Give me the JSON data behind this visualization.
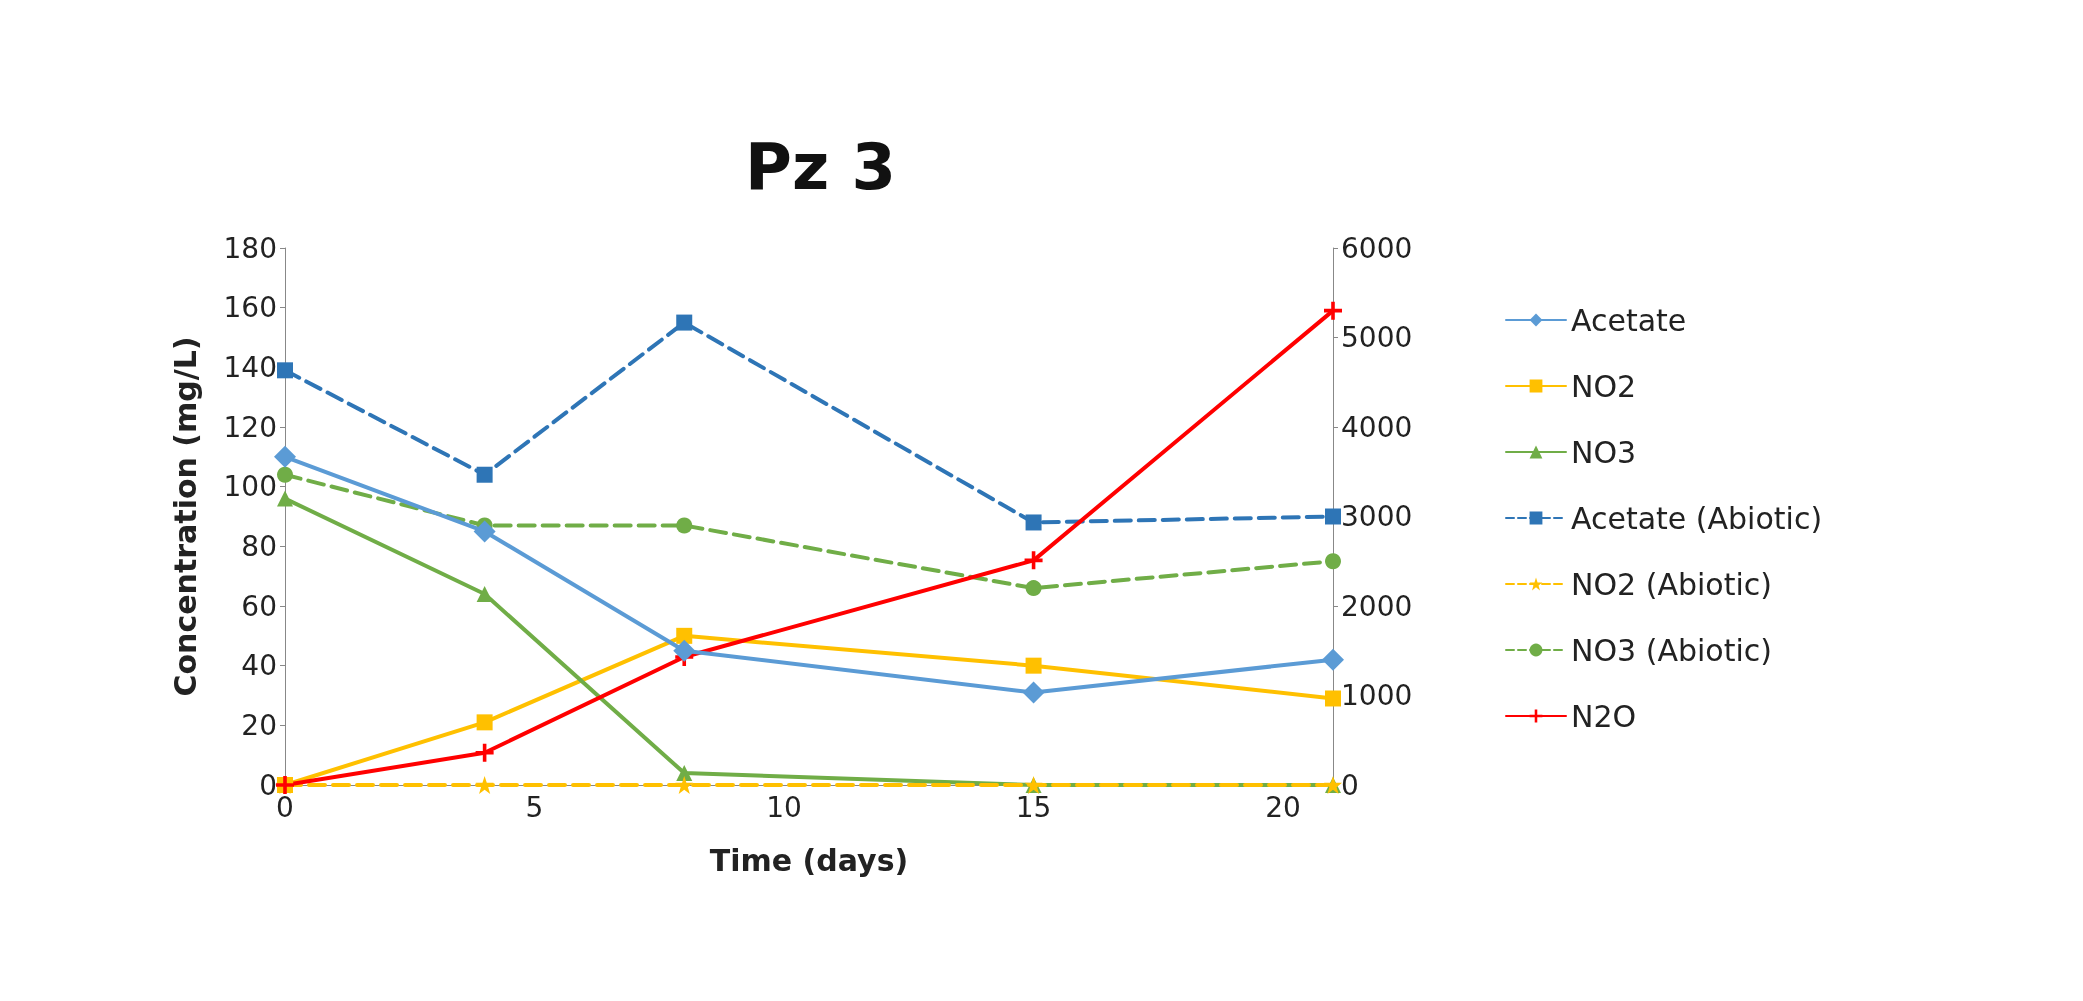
{
  "chart_data": {
    "type": "line",
    "title": "Pz 3",
    "xlabel": "Time (days)",
    "ylabel": "Concentration (mg/L)",
    "x": [
      0,
      4,
      8,
      15,
      21
    ],
    "xlim": [
      0,
      21
    ],
    "xticks": [
      0,
      5,
      10,
      15,
      20
    ],
    "ylim": [
      0,
      180
    ],
    "yticks": [
      0,
      20,
      40,
      60,
      80,
      100,
      120,
      140,
      160,
      180
    ],
    "y2lim": [
      0,
      6000
    ],
    "y2ticks": [
      0,
      1000,
      2000,
      3000,
      4000,
      5000,
      6000
    ],
    "grid": false,
    "legend": "right",
    "series": [
      {
        "name": "Acetate",
        "color": "#5b9bd5",
        "marker": "diamond",
        "line_style": "solid",
        "values": [
          110,
          85,
          45,
          31,
          42
        ]
      },
      {
        "name": "NO2",
        "color": "#ffc000",
        "marker": "square",
        "line_style": "solid",
        "values": [
          0,
          21,
          50,
          40,
          29
        ]
      },
      {
        "name": "NO3",
        "color": "#70ad47",
        "marker": "triangle",
        "line_style": "solid",
        "values": [
          96,
          64,
          4,
          0,
          0
        ]
      },
      {
        "name": "Acetate (Abiotic)",
        "color": "#2e75b6",
        "marker": "square",
        "line_style": "dashed",
        "values": [
          139,
          104,
          155,
          88,
          90
        ]
      },
      {
        "name": "NO2 (Abiotic)",
        "color": "#ffc000",
        "marker": "star",
        "line_style": "dashed",
        "values": [
          0,
          0,
          0,
          0,
          0
        ]
      },
      {
        "name": "NO3 (Abiotic)",
        "color": "#70ad47",
        "marker": "circle",
        "line_style": "dashed",
        "values": [
          104,
          87,
          87,
          66,
          75
        ]
      },
      {
        "name": "N2O",
        "color": "#ff0000",
        "marker": "cross",
        "line_style": "solid",
        "axis": "y2",
        "values": [
          0,
          360,
          1430,
          2510,
          5300
        ]
      }
    ]
  }
}
